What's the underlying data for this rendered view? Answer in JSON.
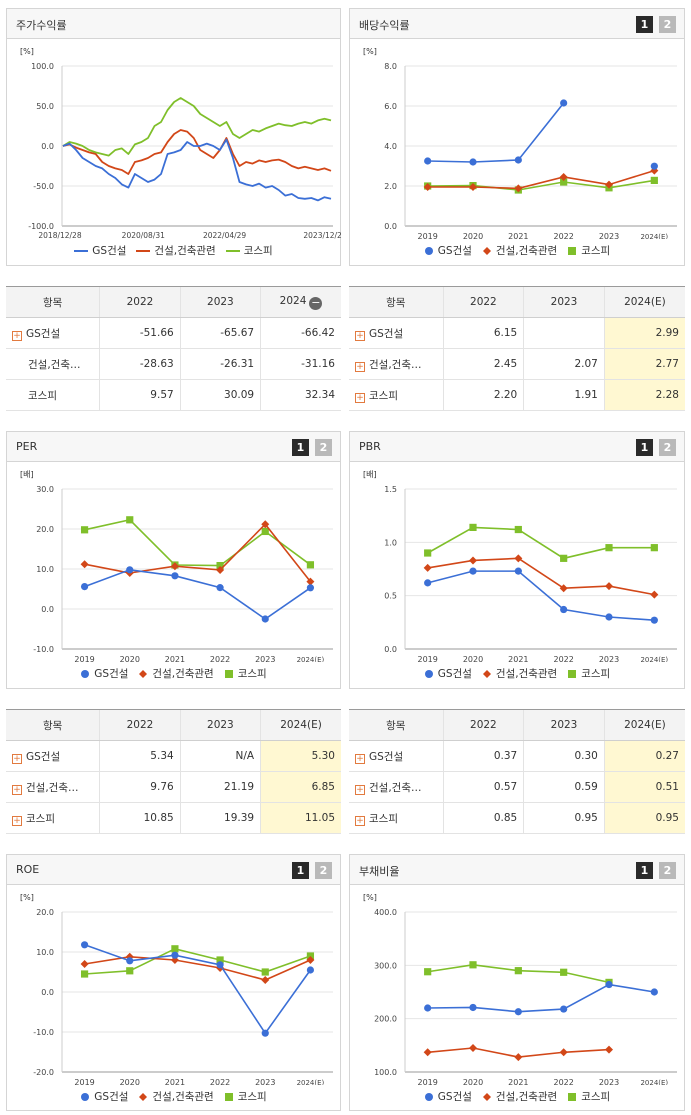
{
  "colors": {
    "gs": "#3b6fd6",
    "con": "#d24718",
    "kospi": "#7fbf2a"
  },
  "legend": [
    "GS건설",
    "건설,건축관련",
    "코스피"
  ],
  "pager": [
    "1",
    "2"
  ],
  "tables": {
    "ret": {
      "head": [
        "항목",
        "2022",
        "2023",
        "2024"
      ],
      "rows": [
        {
          "label": "GS건설",
          "plus": true,
          "v": [
            "-51.66",
            "-65.67",
            "-66.42"
          ]
        },
        {
          "label": "건설,건축…",
          "plus": false,
          "v": [
            "-28.63",
            "-26.31",
            "-31.16"
          ]
        },
        {
          "label": "코스피",
          "plus": false,
          "v": [
            "9.57",
            "30.09",
            "32.34"
          ]
        }
      ]
    },
    "div": {
      "head": [
        "항목",
        "2022",
        "2023",
        "2024(E)"
      ],
      "rows": [
        {
          "label": "GS건설",
          "plus": true,
          "v": [
            "6.15",
            "",
            "2.99"
          ]
        },
        {
          "label": "건설,건축…",
          "plus": true,
          "v": [
            "2.45",
            "2.07",
            "2.77"
          ]
        },
        {
          "label": "코스피",
          "plus": true,
          "v": [
            "2.20",
            "1.91",
            "2.28"
          ]
        }
      ]
    },
    "per": {
      "head": [
        "항목",
        "2022",
        "2023",
        "2024(E)"
      ],
      "rows": [
        {
          "label": "GS건설",
          "plus": true,
          "v": [
            "5.34",
            "N/A",
            "5.30"
          ]
        },
        {
          "label": "건설,건축…",
          "plus": true,
          "v": [
            "9.76",
            "21.19",
            "6.85"
          ]
        },
        {
          "label": "코스피",
          "plus": true,
          "v": [
            "10.85",
            "19.39",
            "11.05"
          ]
        }
      ]
    },
    "pbr": {
      "head": [
        "항목",
        "2022",
        "2023",
        "2024(E)"
      ],
      "rows": [
        {
          "label": "GS건설",
          "plus": true,
          "v": [
            "0.37",
            "0.30",
            "0.27"
          ]
        },
        {
          "label": "건설,건축…",
          "plus": true,
          "v": [
            "0.57",
            "0.59",
            "0.51"
          ]
        },
        {
          "label": "코스피",
          "plus": true,
          "v": [
            "0.85",
            "0.95",
            "0.95"
          ]
        }
      ]
    }
  },
  "chart_data": [
    {
      "id": "ret",
      "type": "line",
      "title": "주가수익률",
      "ylabel": "[%]",
      "ylim": [
        -100,
        100
      ],
      "yticks": [
        "100.0",
        "50.0",
        "0.0",
        "-50.0",
        "-100.0"
      ],
      "xticks": [
        "2018/12/28",
        "2020/08/31",
        "2022/04/29",
        "2023/12/28"
      ],
      "series": [
        {
          "name": "GS건설",
          "values": [
            0,
            3,
            -5,
            -15,
            -20,
            -25,
            -28,
            -35,
            -40,
            -48,
            -52,
            -35,
            -40,
            -45,
            -42,
            -35,
            -10,
            -8,
            -5,
            5,
            0,
            0,
            3,
            0,
            -5,
            8,
            -15,
            -45,
            -48,
            -50,
            -47,
            -52,
            -50,
            -55,
            -62,
            -60,
            -65,
            -66,
            -65,
            -68,
            -64,
            -66
          ]
        },
        {
          "name": "건설,건축관련",
          "values": [
            0,
            2,
            -2,
            -5,
            -8,
            -10,
            -20,
            -25,
            -28,
            -30,
            -35,
            -20,
            -18,
            -15,
            -10,
            -8,
            5,
            15,
            20,
            18,
            10,
            -5,
            -10,
            -15,
            -5,
            10,
            -10,
            -25,
            -20,
            -22,
            -18,
            -20,
            -18,
            -17,
            -20,
            -25,
            -28,
            -26,
            -28,
            -30,
            -28,
            -31
          ]
        },
        {
          "name": "코스피",
          "values": [
            0,
            5,
            3,
            0,
            -5,
            -8,
            -10,
            -12,
            -5,
            -3,
            -10,
            2,
            5,
            10,
            25,
            30,
            45,
            55,
            60,
            55,
            50,
            40,
            35,
            30,
            25,
            30,
            15,
            10,
            15,
            20,
            18,
            22,
            25,
            28,
            26,
            25,
            28,
            30,
            28,
            32,
            34,
            32
          ]
        }
      ]
    },
    {
      "id": "div",
      "type": "line",
      "title": "배당수익률",
      "ylabel": "[%]",
      "ylim": [
        0,
        8
      ],
      "yticks": [
        "8.0",
        "6.0",
        "4.0",
        "2.0",
        "0.0"
      ],
      "categories": [
        "2019",
        "2020",
        "2021",
        "2022",
        "2023",
        "2024(E)"
      ],
      "series": [
        {
          "name": "GS건설",
          "values": [
            3.25,
            3.2,
            3.3,
            6.15,
            null,
            2.99
          ]
        },
        {
          "name": "건설,건축관련",
          "values": [
            1.95,
            1.95,
            1.88,
            2.45,
            2.07,
            2.77
          ]
        },
        {
          "name": "코스피",
          "values": [
            2.0,
            2.02,
            1.8,
            2.2,
            1.91,
            2.28
          ]
        }
      ]
    },
    {
      "id": "per",
      "type": "line",
      "title": "PER",
      "ylabel": "[배]",
      "ylim": [
        -10,
        30
      ],
      "yticks": [
        "30.0",
        "20.0",
        "10.0",
        "0.0",
        "-10.0"
      ],
      "categories": [
        "2019",
        "2020",
        "2021",
        "2022",
        "2023",
        "2024(E)"
      ],
      "series": [
        {
          "name": "GS건설",
          "values": [
            5.6,
            9.8,
            8.3,
            5.34,
            -2.5,
            5.3
          ]
        },
        {
          "name": "건설,건축관련",
          "values": [
            11.2,
            9.0,
            10.7,
            9.76,
            21.19,
            6.85
          ]
        },
        {
          "name": "코스피",
          "values": [
            19.8,
            22.3,
            11.0,
            10.85,
            19.39,
            11.05
          ]
        }
      ]
    },
    {
      "id": "pbr",
      "type": "line",
      "title": "PBR",
      "ylabel": "[배]",
      "ylim": [
        0,
        1.5
      ],
      "yticks": [
        "1.5",
        "1.0",
        "0.5",
        "0.0"
      ],
      "categories": [
        "2019",
        "2020",
        "2021",
        "2022",
        "2023",
        "2024(E)"
      ],
      "series": [
        {
          "name": "GS건설",
          "values": [
            0.62,
            0.73,
            0.73,
            0.37,
            0.3,
            0.27
          ]
        },
        {
          "name": "건설,건축관련",
          "values": [
            0.76,
            0.83,
            0.85,
            0.57,
            0.59,
            0.51
          ]
        },
        {
          "name": "코스피",
          "values": [
            0.9,
            1.14,
            1.12,
            0.85,
            0.95,
            0.95
          ]
        }
      ]
    },
    {
      "id": "roe",
      "type": "line",
      "title": "ROE",
      "ylabel": "[%]",
      "ylim": [
        -20,
        20
      ],
      "yticks": [
        "20.0",
        "10.0",
        "0.0",
        "-10.0",
        "-20.0"
      ],
      "categories": [
        "2019",
        "2020",
        "2021",
        "2022",
        "2023",
        "2024(E)"
      ],
      "series": [
        {
          "name": "GS건설",
          "values": [
            11.8,
            7.8,
            9.2,
            6.8,
            -10.3,
            5.5
          ]
        },
        {
          "name": "건설,건축관련",
          "values": [
            7.0,
            8.8,
            8.0,
            6.0,
            3.0,
            8.0
          ]
        },
        {
          "name": "코스피",
          "values": [
            4.5,
            5.3,
            10.8,
            8.0,
            5.0,
            9.0
          ]
        }
      ]
    },
    {
      "id": "debt",
      "type": "line",
      "title": "부채비율",
      "ylabel": "[%]",
      "ylim": [
        100,
        400
      ],
      "yticks": [
        "400.0",
        "300.0",
        "200.0",
        "100.0"
      ],
      "categories": [
        "2019",
        "2020",
        "2021",
        "2022",
        "2023",
        "2024(E)"
      ],
      "series": [
        {
          "name": "GS건설",
          "values": [
            220,
            221,
            213,
            218,
            264,
            250
          ]
        },
        {
          "name": "건설,건축관련",
          "values": [
            137,
            145,
            128,
            137,
            142,
            null
          ]
        },
        {
          "name": "코스피",
          "values": [
            288,
            301,
            290,
            287,
            268,
            null
          ]
        }
      ]
    }
  ]
}
